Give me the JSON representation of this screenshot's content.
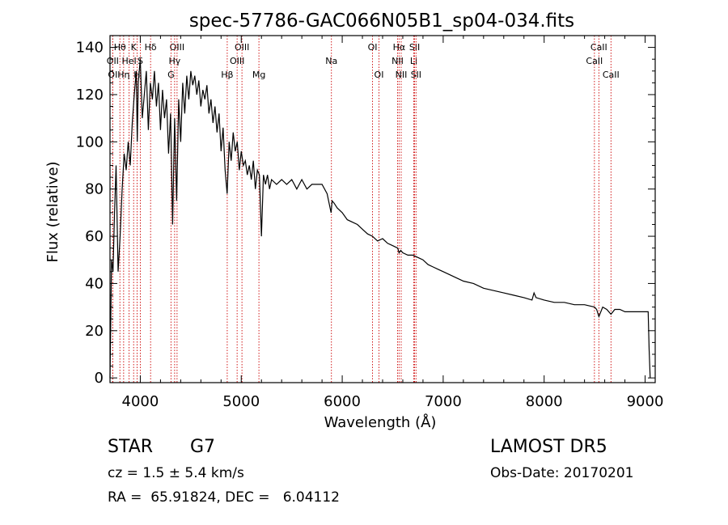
{
  "chart_data": {
    "type": "line",
    "title": "spec-57786-GAC066N05B1_sp04-034.fits",
    "xlabel": "Wavelength (Å)",
    "ylabel": "Flux (relative)",
    "xlim": [
      3700,
      9100
    ],
    "ylim": [
      -2,
      145
    ],
    "xticks": [
      4000,
      5000,
      6000,
      7000,
      8000,
      9000
    ],
    "yticks": [
      0,
      20,
      40,
      60,
      80,
      100,
      120,
      140
    ],
    "line_color": "#000000",
    "marker_color": "#cc0000",
    "grid": false,
    "series": [
      {
        "x": [
          3700,
          3715,
          3730,
          3745,
          3760,
          3780,
          3800,
          3820,
          3840,
          3860,
          3880,
          3900,
          3920,
          3940,
          3960,
          3970,
          3980,
          4000,
          4020,
          4040,
          4060,
          4080,
          4100,
          4120,
          4140,
          4160,
          4180,
          4200,
          4220,
          4240,
          4260,
          4280,
          4300,
          4320,
          4340,
          4360,
          4380,
          4400,
          4420,
          4440,
          4460,
          4480,
          4500,
          4520,
          4540,
          4560,
          4580,
          4600,
          4620,
          4640,
          4660,
          4680,
          4700,
          4720,
          4740,
          4760,
          4780,
          4800,
          4820,
          4840,
          4860,
          4880,
          4900,
          4920,
          4940,
          4960,
          4980,
          5000,
          5020,
          5040,
          5060,
          5080,
          5100,
          5120,
          5140,
          5160,
          5180,
          5200,
          5220,
          5240,
          5260,
          5280,
          5300,
          5350,
          5400,
          5450,
          5500,
          5550,
          5600,
          5650,
          5700,
          5750,
          5800,
          5850,
          5890,
          5900,
          5920,
          5950,
          6000,
          6050,
          6100,
          6150,
          6200,
          6250,
          6300,
          6350,
          6400,
          6450,
          6500,
          6550,
          6563,
          6580,
          6600,
          6650,
          6700,
          6750,
          6800,
          6850,
          6900,
          6950,
          7000,
          7100,
          7200,
          7300,
          7400,
          7500,
          7600,
          7700,
          7800,
          7880,
          7900,
          7920,
          8000,
          8100,
          8200,
          8300,
          8400,
          8498,
          8520,
          8542,
          8580,
          8620,
          8662,
          8700,
          8750,
          8800,
          8850,
          8900,
          8950,
          9000,
          9030,
          9040,
          9050
        ],
        "y": [
          0,
          50,
          45,
          70,
          90,
          45,
          60,
          80,
          95,
          88,
          100,
          90,
          108,
          120,
          130,
          100,
          125,
          135,
          110,
          120,
          130,
          105,
          125,
          118,
          130,
          115,
          125,
          105,
          122,
          110,
          118,
          95,
          112,
          65,
          110,
          75,
          118,
          100,
          125,
          112,
          128,
          118,
          130,
          124,
          128,
          120,
          126,
          115,
          122,
          118,
          124,
          112,
          118,
          108,
          115,
          104,
          112,
          96,
          106,
          88,
          78,
          100,
          92,
          104,
          96,
          100,
          88,
          96,
          90,
          92,
          86,
          90,
          84,
          92,
          80,
          88,
          86,
          60,
          86,
          82,
          86,
          80,
          84,
          82,
          84,
          82,
          84,
          80,
          84,
          80,
          82,
          82,
          82,
          78,
          70,
          75,
          74,
          72,
          70,
          67,
          66,
          65,
          63,
          61,
          60,
          58,
          59,
          57,
          56,
          55,
          53,
          54,
          53,
          52,
          52,
          51,
          50,
          48,
          47,
          46,
          45,
          43,
          41,
          40,
          38,
          37,
          36,
          35,
          34,
          33,
          36,
          34,
          33,
          32,
          32,
          31,
          31,
          30,
          29,
          26,
          30,
          29,
          27,
          29,
          29,
          28,
          28,
          28,
          28,
          28,
          28,
          12,
          0
        ]
      }
    ],
    "line_markers": [
      {
        "label": "Hθ",
        "wave": 3798,
        "row": 0
      },
      {
        "label": "K",
        "wave": 3934,
        "row": 0
      },
      {
        "label": "Hδ",
        "wave": 4102,
        "row": 0
      },
      {
        "label": "OIII",
        "wave": 4364,
        "row": 0
      },
      {
        "label": "OIII",
        "wave": 5007,
        "row": 0
      },
      {
        "label": "OI",
        "wave": 6300,
        "row": 0
      },
      {
        "label": "Hα",
        "wave": 6563,
        "row": 0
      },
      {
        "label": "SII",
        "wave": 6717,
        "row": 0
      },
      {
        "label": "CaII",
        "wave": 8542,
        "row": 0
      },
      {
        "label": "OII",
        "wave": 3727,
        "row": 1
      },
      {
        "label": "HeI",
        "wave": 3889,
        "row": 1
      },
      {
        "label": "S",
        "wave": 4000,
        "row": 1
      },
      {
        "label": "Hγ",
        "wave": 4340,
        "row": 1
      },
      {
        "label": "OIII",
        "wave": 4959,
        "row": 1
      },
      {
        "label": "Na",
        "wave": 5893,
        "row": 1
      },
      {
        "label": "NII",
        "wave": 6548,
        "row": 1
      },
      {
        "label": "Li",
        "wave": 6708,
        "row": 1
      },
      {
        "label": "CaII",
        "wave": 8498,
        "row": 1
      },
      {
        "label": "OI",
        "wave": 3727,
        "row": 2
      },
      {
        "label": "Hη",
        "wave": 3835,
        "row": 2
      },
      {
        "label": "H",
        "wave": 3968,
        "row": 2
      },
      {
        "label": "G",
        "wave": 4304,
        "row": 2
      },
      {
        "label": "Hβ",
        "wave": 4861,
        "row": 2
      },
      {
        "label": "Mg",
        "wave": 5175,
        "row": 2
      },
      {
        "label": "OI",
        "wave": 6364,
        "row": 2
      },
      {
        "label": "NII",
        "wave": 6584,
        "row": 2
      },
      {
        "label": "SII",
        "wave": 6731,
        "row": 2
      },
      {
        "label": "CaII",
        "wave": 8662,
        "row": 2
      }
    ]
  },
  "info": {
    "class": "STAR",
    "subclass": "G7",
    "survey": "LAMOST DR5",
    "cz": "cz = 1.5 ± 5.4 km/s",
    "obs_date": "Obs-Date: 20170201",
    "radec": "RA =  65.91824, DEC =   6.04112"
  }
}
